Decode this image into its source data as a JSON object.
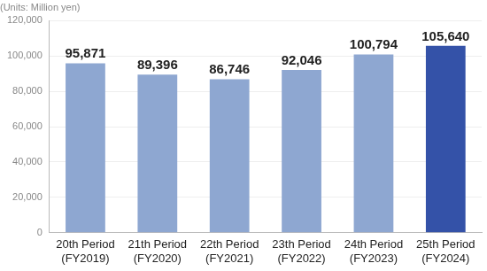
{
  "chart_data": {
    "type": "bar",
    "title": "(Units: Million yen)",
    "categories": [
      [
        "20th Period",
        "(FY2019)"
      ],
      [
        "21th Period",
        "(FY2020)"
      ],
      [
        "22th Period",
        "(FY2021)"
      ],
      [
        "23th Period",
        "(FY2022)"
      ],
      [
        "24th Period",
        "(FY2023)"
      ],
      [
        "25th Period",
        "(FY2024)"
      ]
    ],
    "values": [
      95871,
      89396,
      86746,
      92046,
      100794,
      105640
    ],
    "value_labels": [
      "95,871",
      "89,396",
      "86,746",
      "92,046",
      "100,794",
      "105,640"
    ],
    "colors": [
      "#8ea7d1",
      "#8ea7d1",
      "#8ea7d1",
      "#8ea7d1",
      "#8ea7d1",
      "#3452a8"
    ],
    "ylim": [
      0,
      120000
    ],
    "yticks": [
      0,
      {
        "value": 20000,
        "label": "20,000"
      },
      {
        "value": 40000,
        "label": "40,000"
      },
      {
        "value": 60000,
        "label": "60,000"
      },
      {
        "value": 80000,
        "label": "80,000"
      },
      {
        "value": 100000,
        "label": "100,000"
      },
      {
        "value": 120000,
        "label": "120,000"
      }
    ],
    "grid": true,
    "data_labels": true
  }
}
